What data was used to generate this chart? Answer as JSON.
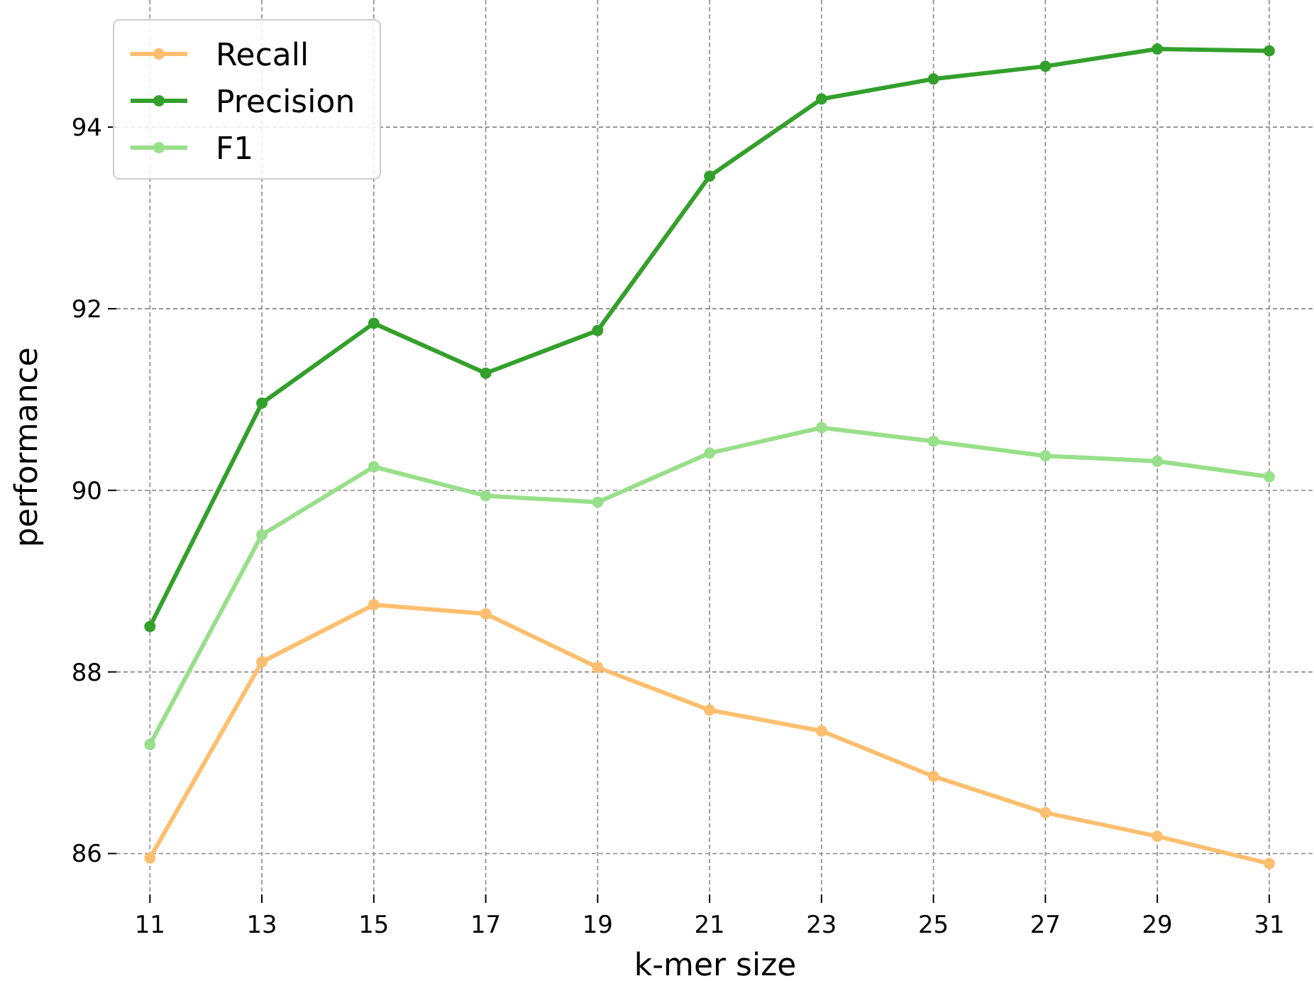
{
  "chart_data": {
    "type": "line",
    "xlabel": "k-mer size",
    "ylabel": "performance",
    "x": [
      11,
      13,
      15,
      17,
      19,
      21,
      23,
      25,
      27,
      29,
      31
    ],
    "series": [
      {
        "name": "Recall",
        "color": "#fdbf6f",
        "values": [
          85.95,
          88.11,
          88.74,
          88.64,
          88.05,
          87.58,
          87.35,
          86.85,
          86.45,
          86.19,
          85.89
        ]
      },
      {
        "name": "Precision",
        "color": "#33a02c",
        "values": [
          88.5,
          90.96,
          91.84,
          91.29,
          91.76,
          93.46,
          94.31,
          94.53,
          94.67,
          94.86,
          94.84
        ]
      },
      {
        "name": "F1",
        "color": "#98df8a",
        "values": [
          87.2,
          89.51,
          90.26,
          89.94,
          89.87,
          90.41,
          90.69,
          90.54,
          90.38,
          90.32,
          90.15
        ]
      }
    ],
    "xlim": [
      10.4,
      31.8
    ],
    "ylim": [
      85.55,
      95.4
    ],
    "xticks": [
      11,
      13,
      15,
      17,
      19,
      21,
      23,
      25,
      27,
      29,
      31
    ],
    "yticks": [
      86,
      88,
      90,
      92,
      94
    ],
    "grid": true,
    "legend": "top left",
    "marker": "circle",
    "line_style": "solid"
  }
}
